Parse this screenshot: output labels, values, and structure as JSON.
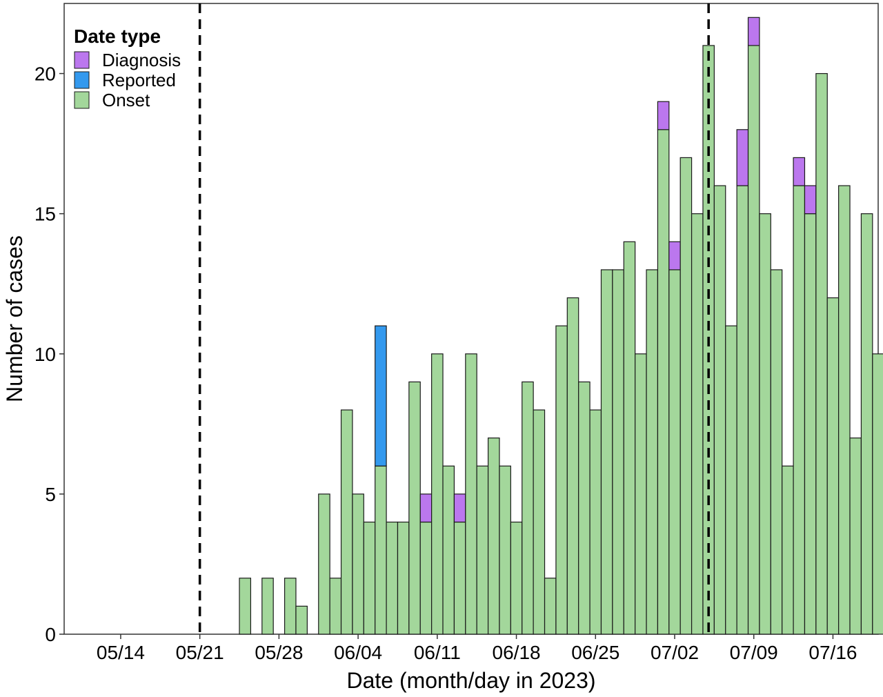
{
  "chart_data": {
    "type": "bar",
    "stacked": true,
    "xlabel": "Date (month/day in 2023)",
    "ylabel": "Number of cases",
    "ylim": [
      0,
      22.5
    ],
    "yticks": [
      0,
      5,
      10,
      15,
      20
    ],
    "xticks": [
      {
        "date": "2023-05-14",
        "label": "05/14"
      },
      {
        "date": "2023-05-21",
        "label": "05/21"
      },
      {
        "date": "2023-05-28",
        "label": "05/28"
      },
      {
        "date": "2023-06-04",
        "label": "06/04"
      },
      {
        "date": "2023-06-11",
        "label": "06/11"
      },
      {
        "date": "2023-06-18",
        "label": "06/18"
      },
      {
        "date": "2023-06-25",
        "label": "06/25"
      },
      {
        "date": "2023-07-02",
        "label": "07/02"
      },
      {
        "date": "2023-07-09",
        "label": "07/09"
      },
      {
        "date": "2023-07-16",
        "label": "07/16"
      }
    ],
    "xlim": [
      "2023-05-09",
      "2023-07-20"
    ],
    "vlines": [
      "2023-05-21",
      "2023-07-05"
    ],
    "legend": {
      "title": "Date type",
      "position": "top-left",
      "entries": [
        "Diagnosis",
        "Reported",
        "Onset"
      ]
    },
    "colors": {
      "Onset": "#a3d79b",
      "Reported": "#3399ee",
      "Diagnosis": "#bb77ee"
    },
    "dates": [
      "2023-05-25",
      "2023-05-27",
      "2023-05-29",
      "2023-05-30",
      "2023-06-01",
      "2023-06-02",
      "2023-06-03",
      "2023-06-04",
      "2023-06-05",
      "2023-06-06",
      "2023-06-07",
      "2023-06-08",
      "2023-06-09",
      "2023-06-10",
      "2023-06-11",
      "2023-06-12",
      "2023-06-13",
      "2023-06-14",
      "2023-06-15",
      "2023-06-16",
      "2023-06-17",
      "2023-06-18",
      "2023-06-19",
      "2023-06-20",
      "2023-06-21",
      "2023-06-22",
      "2023-06-23",
      "2023-06-24",
      "2023-06-25",
      "2023-06-26",
      "2023-06-27",
      "2023-06-28",
      "2023-06-29",
      "2023-06-30",
      "2023-07-01",
      "2023-07-02",
      "2023-07-03",
      "2023-07-04",
      "2023-07-05",
      "2023-07-06",
      "2023-07-07",
      "2023-07-08",
      "2023-07-09",
      "2023-07-10",
      "2023-07-11",
      "2023-07-12",
      "2023-07-13",
      "2023-07-14",
      "2023-07-15",
      "2023-07-16",
      "2023-07-17",
      "2023-07-18",
      "2023-07-19",
      "2023-07-20"
    ],
    "series": [
      {
        "name": "Onset",
        "values": [
          2,
          2,
          2,
          1,
          5,
          2,
          8,
          5,
          4,
          6,
          4,
          4,
          9,
          4,
          10,
          6,
          4,
          10,
          6,
          7,
          6,
          4,
          9,
          8,
          2,
          11,
          12,
          9,
          8,
          13,
          13,
          14,
          10,
          13,
          18,
          13,
          17,
          15,
          21,
          16,
          11,
          16,
          21,
          15,
          13,
          6,
          16,
          15,
          20,
          12,
          16,
          7,
          15,
          10
        ]
      },
      {
        "name": "Reported",
        "values": [
          0,
          0,
          0,
          0,
          0,
          0,
          0,
          0,
          0,
          5,
          0,
          0,
          0,
          0,
          0,
          0,
          0,
          0,
          0,
          0,
          0,
          0,
          0,
          0,
          0,
          0,
          0,
          0,
          0,
          0,
          0,
          0,
          0,
          0,
          0,
          0,
          0,
          0,
          0,
          0,
          0,
          0,
          0,
          0,
          0,
          0,
          0,
          0,
          0,
          0,
          0,
          0,
          0,
          0
        ]
      },
      {
        "name": "Diagnosis",
        "values": [
          0,
          0,
          0,
          0,
          0,
          0,
          0,
          0,
          0,
          0,
          0,
          0,
          0,
          1,
          0,
          0,
          1,
          0,
          0,
          0,
          0,
          0,
          0,
          0,
          0,
          0,
          0,
          0,
          0,
          0,
          0,
          0,
          0,
          0,
          1,
          1,
          0,
          0,
          0,
          0,
          0,
          2,
          1,
          0,
          0,
          0,
          1,
          1,
          0,
          0,
          0,
          0,
          0,
          0
        ]
      }
    ]
  }
}
